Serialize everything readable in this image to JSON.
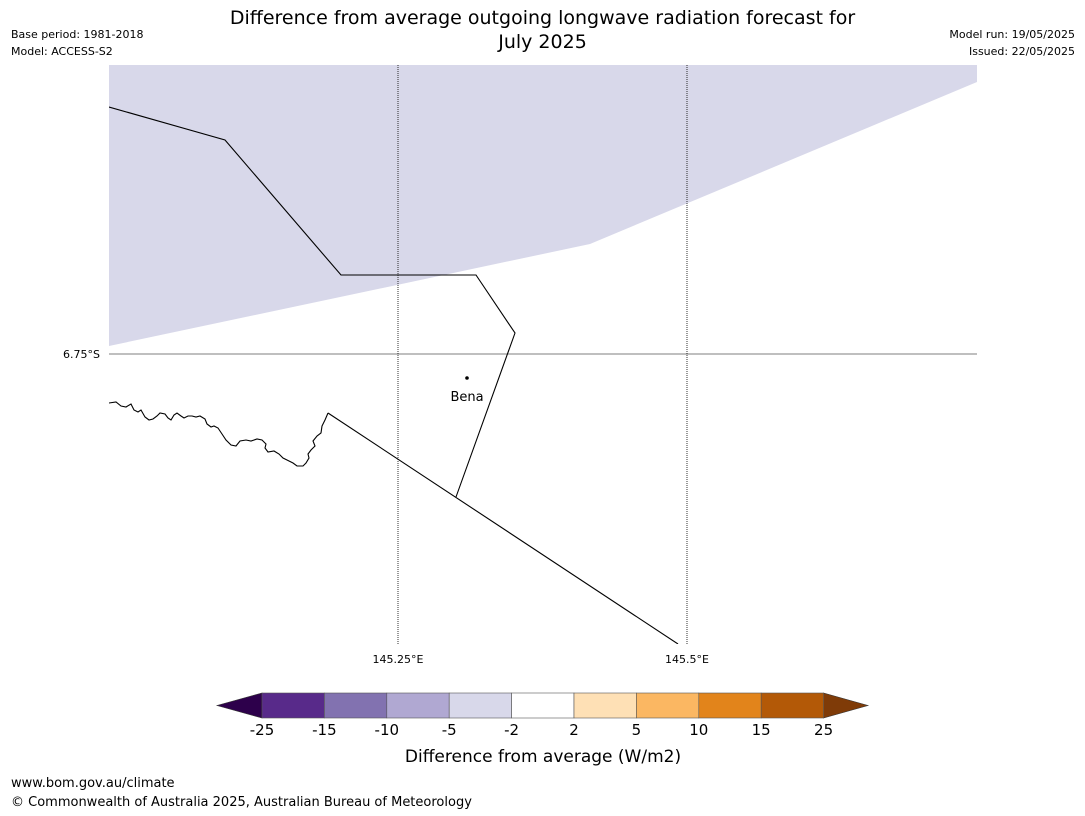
{
  "title_line1": "Difference from average outgoing longwave radiation forecast for",
  "title_line2": "July 2025",
  "meta_left": {
    "base_period": "Base period: 1981-2018",
    "model": "Model: ACCESS-S2"
  },
  "meta_right": {
    "model_run": "Model run: 19/05/2025",
    "issued": "Issued: 22/05/2025"
  },
  "map": {
    "lat_label": "6.75°S",
    "lon_labels": [
      "145.25°E",
      "145.5°E"
    ],
    "place": "Bena",
    "shaded_colour": "#d8d8ea"
  },
  "legend": {
    "title": "Difference from average (W/m2)",
    "ticks": [
      "-25",
      "-15",
      "-10",
      "-5",
      "-2",
      "2",
      "5",
      "10",
      "15",
      "25"
    ],
    "colours": [
      "#582a8a",
      "#8272b0",
      "#b0a8d2",
      "#d8d8ea",
      "#ffffff",
      "#fee0b5",
      "#fbb762",
      "#e2841b",
      "#b35907"
    ],
    "under_colour": "#2d004b",
    "over_colour": "#7f3b08"
  },
  "footer": {
    "url": "www.bom.gov.au/climate",
    "copyright": "© Commonwealth of Australia 2025, Australian Bureau of Meteorology"
  }
}
